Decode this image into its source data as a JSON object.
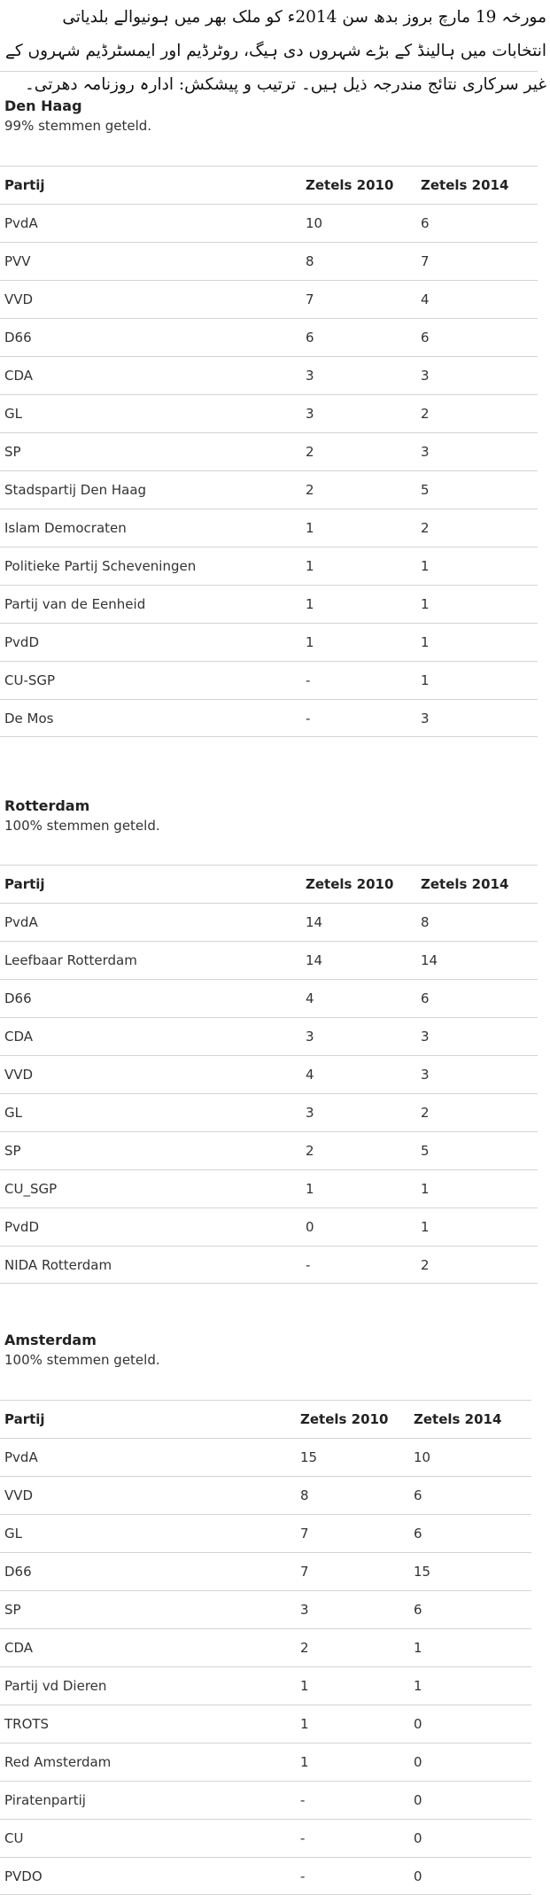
{
  "intro": {
    "text": "مورخہ 19 مارچ بروز بدھ سن 2014ء کو ملک بھر میں ہونیوالے بلدیاتی انتخابات میں ہالینڈ کے بڑے شہروں دی ہیگ، روٹرڈیم اور ایمسٹرڈیم شہروں کے غیر سرکاری نتائج مندرجہ ذیل ہیں۔ ترتیب و پیشکش: ادارہ روزنامہ دھرتی۔"
  },
  "headers": {
    "party": "Partij",
    "y2010": "Zetels 2010",
    "y2014": "Zetels 2014"
  },
  "cities": [
    {
      "name": "Den Haag",
      "counted": "99% stemmen geteld.",
      "rows": [
        {
          "party": "PvdA",
          "y2010": "10",
          "y2014": "6"
        },
        {
          "party": "PVV",
          "y2010": "8",
          "y2014": "7"
        },
        {
          "party": "VVD",
          "y2010": "7",
          "y2014": "4"
        },
        {
          "party": "D66",
          "y2010": "6",
          "y2014": "6"
        },
        {
          "party": "CDA",
          "y2010": "3",
          "y2014": "3"
        },
        {
          "party": "GL",
          "y2010": "3",
          "y2014": "2"
        },
        {
          "party": "SP",
          "y2010": "2",
          "y2014": "3"
        },
        {
          "party": "Stadspartij Den Haag",
          "y2010": "2",
          "y2014": "5"
        },
        {
          "party": "Islam Democraten",
          "y2010": "1",
          "y2014": "2"
        },
        {
          "party": "Politieke Partij Scheveningen",
          "y2010": "1",
          "y2014": "1"
        },
        {
          "party": "Partij van de Eenheid",
          "y2010": "1",
          "y2014": "1"
        },
        {
          "party": "PvdD",
          "y2010": "1",
          "y2014": "1"
        },
        {
          "party": "CU-SGP",
          "y2010": "-",
          "y2014": "1"
        },
        {
          "party": "De Mos",
          "y2010": "-",
          "y2014": "3"
        }
      ]
    },
    {
      "name": "Rotterdam",
      "counted": "100% stemmen geteld.",
      "rows": [
        {
          "party": "PvdA",
          "y2010": "14",
          "y2014": "8"
        },
        {
          "party": "Leefbaar Rotterdam",
          "y2010": "14",
          "y2014": "14"
        },
        {
          "party": "D66",
          "y2010": "4",
          "y2014": "6"
        },
        {
          "party": "CDA",
          "y2010": "3",
          "y2014": "3"
        },
        {
          "party": "VVD",
          "y2010": "4",
          "y2014": "3"
        },
        {
          "party": "GL",
          "y2010": "3",
          "y2014": "2"
        },
        {
          "party": "SP",
          "y2010": "2",
          "y2014": "5"
        },
        {
          "party": "CU_SGP",
          "y2010": "1",
          "y2014": "1"
        },
        {
          "party": "PvdD",
          "y2010": "0",
          "y2014": "1"
        },
        {
          "party": "NIDA Rotterdam",
          "y2010": "-",
          "y2014": "2"
        }
      ]
    },
    {
      "name": "Amsterdam",
      "counted": "100% stemmen geteld.",
      "rows": [
        {
          "party": "PvdA",
          "y2010": "15",
          "y2014": "10"
        },
        {
          "party": "VVD",
          "y2010": "8",
          "y2014": "6"
        },
        {
          "party": "GL",
          "y2010": "7",
          "y2014": "6"
        },
        {
          "party": "D66",
          "y2010": "7",
          "y2014": "15"
        },
        {
          "party": "SP",
          "y2010": "3",
          "y2014": "6"
        },
        {
          "party": "CDA",
          "y2010": "2",
          "y2014": "1"
        },
        {
          "party": "Partij vd Dieren",
          "y2010": "1",
          "y2014": "1"
        },
        {
          "party": "TROTS",
          "y2010": "1",
          "y2014": "0"
        },
        {
          "party": "Red Amsterdam",
          "y2010": "1",
          "y2014": "0"
        },
        {
          "party": "Piratenpartij",
          "y2010": "-",
          "y2014": "0"
        },
        {
          "party": "CU",
          "y2010": "-",
          "y2014": "0"
        },
        {
          "party": "PVDO",
          "y2010": "-",
          "y2014": "0"
        }
      ]
    }
  ]
}
